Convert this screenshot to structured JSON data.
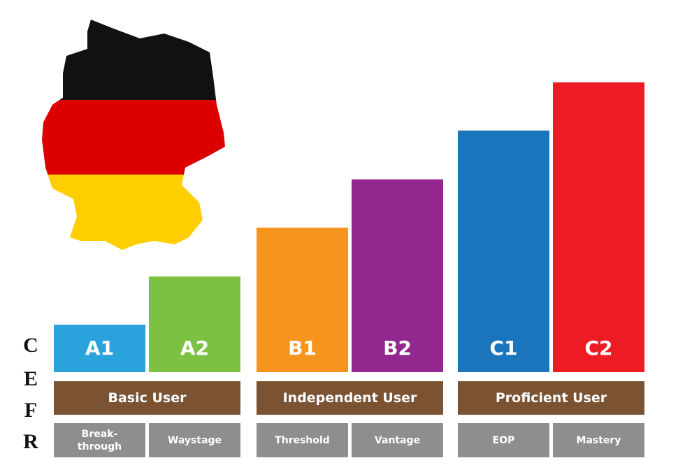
{
  "side_label": [
    "C",
    "E",
    "F",
    "R"
  ],
  "groups": [
    {
      "name": "Basic User",
      "levels": [
        {
          "code": "A1",
          "descriptor": "Break-\nthrough"
        },
        {
          "code": "A2",
          "descriptor": "Waystage"
        }
      ]
    },
    {
      "name": "Independent User",
      "levels": [
        {
          "code": "B1",
          "descriptor": "Threshold"
        },
        {
          "code": "B2",
          "descriptor": "Vantage"
        }
      ]
    },
    {
      "name": "Proficient User",
      "levels": [
        {
          "code": "C1",
          "descriptor": "EOP"
        },
        {
          "code": "C2",
          "descriptor": "Mastery"
        }
      ]
    }
  ]
}
